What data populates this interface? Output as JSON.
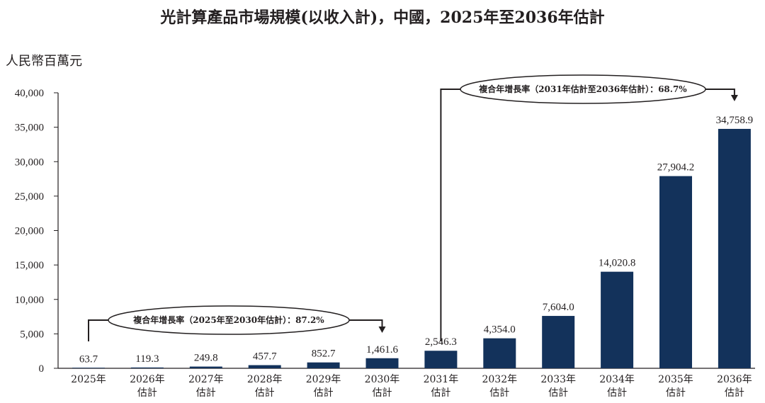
{
  "chart_data": {
    "type": "bar",
    "title": "光計算產品市場規模(以收入計)，中國，2025年至2036年估計",
    "ylabel": "人民幣百萬元",
    "ylim": [
      0,
      40000
    ],
    "y_ticks": [
      "0",
      "5,000",
      "10,000",
      "15,000",
      "20,000",
      "25,000",
      "30,000",
      "35,000",
      "40,000"
    ],
    "categories": [
      {
        "line1": "2025年",
        "line2": ""
      },
      {
        "line1": "2026年",
        "line2": "估計"
      },
      {
        "line1": "2027年",
        "line2": "估計"
      },
      {
        "line1": "2028年",
        "line2": "估計"
      },
      {
        "line1": "2029年",
        "line2": "估計"
      },
      {
        "line1": "2030年",
        "line2": "估計"
      },
      {
        "line1": "2031年",
        "line2": "估計"
      },
      {
        "line1": "2032年",
        "line2": "估計"
      },
      {
        "line1": "2033年",
        "line2": "估計"
      },
      {
        "line1": "2034年",
        "line2": "估計"
      },
      {
        "line1": "2035年",
        "line2": "估計"
      },
      {
        "line1": "2036年",
        "line2": "估計"
      }
    ],
    "values": [
      63.7,
      119.3,
      249.8,
      457.7,
      852.7,
      1461.6,
      2546.3,
      4354.0,
      7604.0,
      14020.8,
      27904.2,
      34758.9
    ],
    "value_labels": [
      "63.7",
      "119.3",
      "249.8",
      "457.7",
      "852.7",
      "1,461.6",
      "2,546.3",
      "4,354.0",
      "7,604.0",
      "14,020.8",
      "27,904.2",
      "34,758.9"
    ],
    "grid": false,
    "bar_color": "#13325b",
    "annotations": [
      {
        "text": "複合年增長率（2025年至2030年估計）：87.2%",
        "from_index": 0,
        "to_index": 5
      },
      {
        "text": "複合年增長率（2031年估計至2036年估計）：68.7%",
        "from_index": 6,
        "to_index": 11
      }
    ]
  }
}
